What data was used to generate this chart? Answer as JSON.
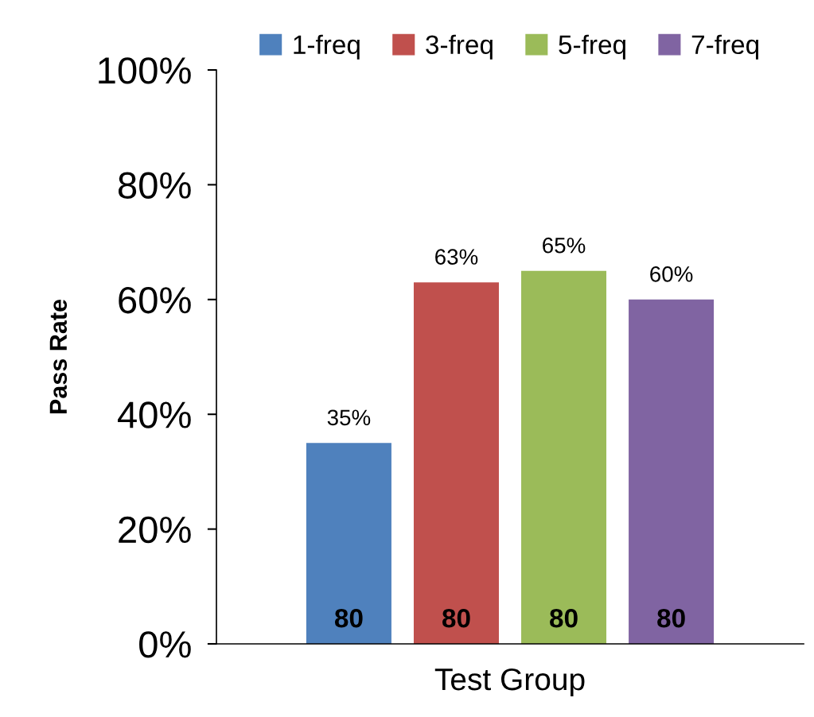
{
  "chart_data": {
    "type": "bar",
    "xlabel": "Test Group",
    "ylabel": "Pass Rate",
    "categories": [
      null
    ],
    "series": [
      {
        "name": "1-freq",
        "color": "#4f81bd",
        "values": [
          35
        ],
        "value_labels": [
          "35%"
        ]
      },
      {
        "name": "3-freq",
        "color": "#c0504d",
        "values": [
          63
        ],
        "value_labels": [
          "63%"
        ]
      },
      {
        "name": "5-freq",
        "color": "#9bbb59",
        "values": [
          65
        ],
        "value_labels": [
          "65%"
        ]
      },
      {
        "name": "7-freq",
        "color": "#8064a2",
        "values": [
          60
        ],
        "value_labels": [
          "60%"
        ]
      }
    ],
    "annotations": [
      {
        "text": "80",
        "y": 0
      },
      {
        "text": "80",
        "y": 0
      },
      {
        "text": "80",
        "y": 0
      },
      {
        "text": "80",
        "y": 0
      }
    ],
    "ylim": [
      0,
      100
    ],
    "yticks": [
      {
        "value": 0,
        "label": "0%"
      },
      {
        "value": 20,
        "label": "20%"
      },
      {
        "value": 40,
        "label": "40%"
      },
      {
        "value": 60,
        "label": "60%"
      },
      {
        "value": 80,
        "label": "80%"
      },
      {
        "value": 100,
        "label": "100%"
      }
    ],
    "grid": false,
    "legend": "top"
  }
}
